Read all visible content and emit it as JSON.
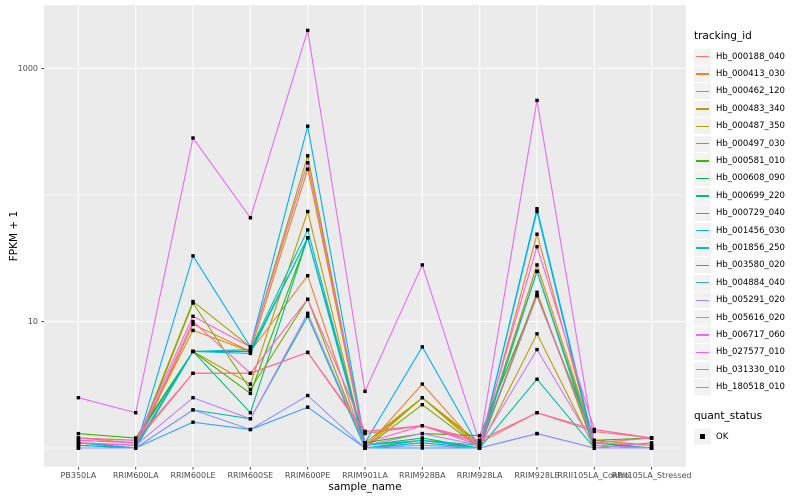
{
  "figure": {
    "x_axis_title": "sample_name",
    "y_axis_title": "FPKM + 1",
    "panel_background": "#EBEBEB",
    "gridline_color": "#FFFFFF",
    "tick_text_color": "#4D4D4D",
    "point_color": "#000000"
  },
  "legend": {
    "tracking_title": "tracking_id",
    "quant_title": "quant_status",
    "quant_ok_label": "OK"
  },
  "chart_data": {
    "type": "line",
    "title": "",
    "xlabel": "sample_name",
    "ylabel": "FPKM + 1",
    "y_scale": "log10",
    "y_ticks": [
      10,
      1000
    ],
    "y_major_gridlines": [
      10,
      1000
    ],
    "y_minor_gridlines": [
      1,
      100
    ],
    "grid": true,
    "legend_position": "right",
    "point_shape": "filled-square",
    "quant_status": "OK",
    "categories": [
      "PB350LA",
      "RRIM600LA",
      "RRIM600LE",
      "RRIM600SE",
      "RRIM600PE",
      "RRIM901LA",
      "RRIM928BA",
      "RRIM928LA",
      "RRIM928LE",
      "RRII105LA_Control",
      "RRII105LA_Stressed"
    ],
    "series": [
      {
        "name": "Hb_000188_040",
        "color": "#F8766D",
        "values": [
          1.2,
          1.1,
          3.9,
          3.9,
          5.7,
          1.3,
          1.5,
          1.1,
          1.9,
          1.35,
          1.2
        ]
      },
      {
        "name": "Hb_000413_030",
        "color": "#EA8331",
        "values": [
          1.1,
          1.0,
          9.5,
          5.8,
          23,
          1.0,
          3.2,
          1.0,
          49,
          1.1,
          1.0
        ]
      },
      {
        "name": "Hb_000462_120",
        "color": "#D89000",
        "values": [
          1.15,
          1.1,
          8.5,
          5.8,
          160,
          1.05,
          2.5,
          1.05,
          28,
          1.15,
          1.05
        ]
      },
      {
        "name": "Hb_000483_340",
        "color": "#C09B00",
        "values": [
          1.0,
          1.0,
          5.8,
          3.2,
          74,
          1.0,
          2.5,
          1.0,
          8.0,
          1.0,
          1.1
        ]
      },
      {
        "name": "Hb_000487_350",
        "color": "#A3A500",
        "values": [
          1.1,
          1.05,
          14.4,
          6.3,
          204,
          1.1,
          2.5,
          1.1,
          25,
          1.1,
          1.0
        ]
      },
      {
        "name": "Hb_000497_030",
        "color": "#7CAE00",
        "values": [
          1.05,
          1.0,
          14.0,
          2.9,
          15,
          1.0,
          2.2,
          1.0,
          17,
          1.0,
          1.0
        ]
      },
      {
        "name": "Hb_000581_010",
        "color": "#39B600",
        "values": [
          1.3,
          1.2,
          5.8,
          2.7,
          46,
          1.1,
          1.3,
          1.25,
          16,
          1.15,
          1.2
        ]
      },
      {
        "name": "Hb_000608_090",
        "color": "#00BB4E",
        "values": [
          1.2,
          1.15,
          5.8,
          5.8,
          46,
          1.05,
          1.2,
          1.0,
          16,
          1.1,
          1.0
        ]
      },
      {
        "name": "Hb_000699_220",
        "color": "#00BF7D",
        "values": [
          1.1,
          1.0,
          5.8,
          1.9,
          46,
          1.0,
          1.15,
          1.0,
          25,
          1.0,
          1.0
        ]
      },
      {
        "name": "Hb_000729_040",
        "color": "#00C1A3",
        "values": [
          1.0,
          1.0,
          2.0,
          1.7,
          11,
          1.0,
          1.1,
          1.0,
          3.5,
          1.0,
          1.0
        ]
      },
      {
        "name": "Hb_001456_030",
        "color": "#00BFC4",
        "values": [
          1.1,
          1.05,
          5.8,
          6.0,
          53,
          1.05,
          1.15,
          1.05,
          25,
          1.05,
          1.0
        ]
      },
      {
        "name": "Hb_001856_250",
        "color": "#00BAE0",
        "values": [
          1.05,
          1.0,
          5.8,
          5.6,
          46,
          1.0,
          1.1,
          1.0,
          74,
          1.0,
          1.0
        ]
      },
      {
        "name": "Hb_003580_020",
        "color": "#00B0F6",
        "values": [
          1.1,
          1.0,
          33,
          6.3,
          350,
          1.1,
          6.3,
          1.0,
          78,
          1.05,
          1.0
        ]
      },
      {
        "name": "Hb_004884_040",
        "color": "#35A2FF",
        "values": [
          1.0,
          1.0,
          1.6,
          1.4,
          2.1,
          1.0,
          1.0,
          1.0,
          1.3,
          1.0,
          1.0
        ]
      },
      {
        "name": "Hb_005291_020",
        "color": "#9590FF",
        "values": [
          1.0,
          1.0,
          2.0,
          1.4,
          2.6,
          1.0,
          1.05,
          1.0,
          1.3,
          1.0,
          1.0
        ]
      },
      {
        "name": "Hb_005616_020",
        "color": "#C77CFF",
        "values": [
          1.1,
          1.05,
          2.5,
          1.7,
          11.6,
          1.05,
          1.3,
          1.05,
          6.0,
          1.05,
          1.0
        ]
      },
      {
        "name": "Hb_006717_060",
        "color": "#E76BF3",
        "values": [
          2.5,
          1.9,
          282,
          66,
          2000,
          2.8,
          28,
          1.1,
          560,
          1.1,
          1.05
        ]
      },
      {
        "name": "Hb_027577_010",
        "color": "#FA62DB",
        "values": [
          1.15,
          1.1,
          11,
          6.3,
          180,
          1.1,
          1.5,
          1.1,
          39,
          1.4,
          1.2
        ]
      },
      {
        "name": "Hb_031330_010",
        "color": "#FF62BC",
        "values": [
          1.1,
          1.05,
          10,
          3.9,
          15,
          1.35,
          1.5,
          1.05,
          16,
          1.1,
          1.2
        ]
      },
      {
        "name": "Hb_180518_010",
        "color": "#FF6A98",
        "values": [
          1.2,
          1.15,
          3.9,
          3.9,
          5.7,
          1.35,
          1.5,
          1.15,
          1.9,
          1.4,
          1.2
        ]
      }
    ]
  }
}
